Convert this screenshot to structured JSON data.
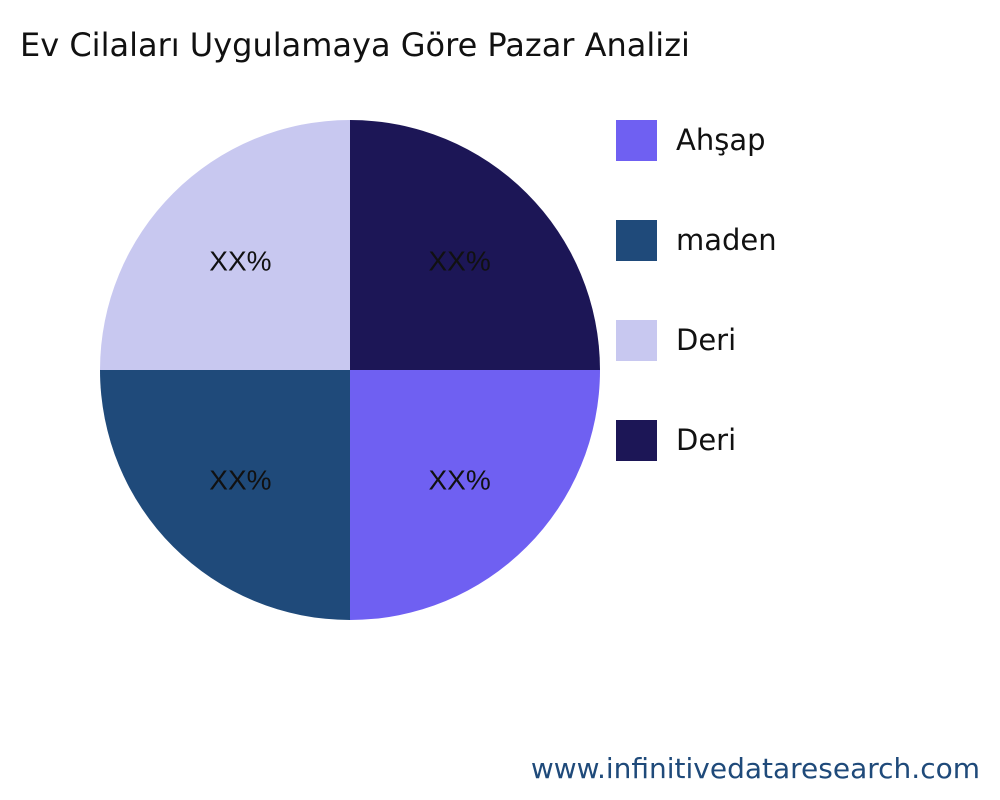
{
  "title": "Ev Cilaları Uygulamaya Göre Pazar Analizi",
  "footer": "www.infinitivedataresearch.com",
  "chart_data": {
    "type": "pie",
    "title": "Ev Cilaları Uygulamaya Göre Pazar Analizi",
    "labels": [
      "Ahşap",
      "maden",
      "Deri",
      "Deri"
    ],
    "values": [
      25,
      25,
      25,
      25
    ],
    "data_labels": [
      "XX%",
      "XX%",
      "XX%",
      "XX%"
    ],
    "colors": [
      "#6f60f2",
      "#1f4a7a",
      "#c8c8f0",
      "#1c1656"
    ],
    "legend_position": "right"
  }
}
